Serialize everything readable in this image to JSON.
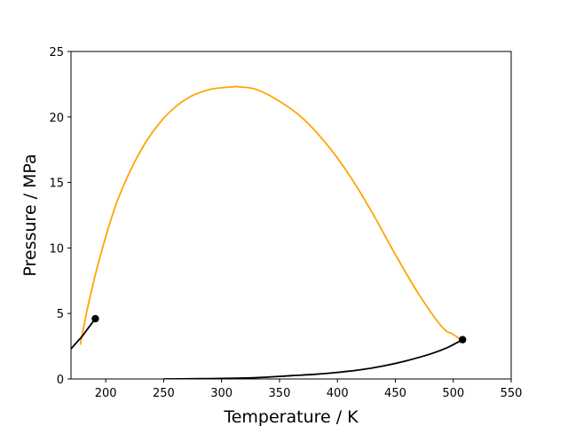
{
  "chart_data": {
    "type": "line",
    "xlabel": "Temperature / K",
    "ylabel": "Pressure / MPa",
    "xlim": [
      170,
      550
    ],
    "ylim": [
      0,
      25
    ],
    "xticks": [
      200,
      250,
      300,
      350,
      400,
      450,
      500,
      550
    ],
    "yticks": [
      0,
      5,
      10,
      15,
      20,
      25
    ],
    "grid": false,
    "series": [
      {
        "color": "#ffa500",
        "x": [
          178,
          185,
          195,
          210,
          230,
          250,
          270,
          290,
          310,
          315,
          330,
          350,
          370,
          390,
          410,
          430,
          450,
          470,
          490,
          500,
          507
        ],
        "y": [
          2.6,
          5.7,
          9.3,
          13.6,
          17.4,
          19.9,
          21.4,
          22.1,
          22.3,
          22.3,
          22.1,
          21.2,
          19.9,
          18.0,
          15.6,
          12.7,
          9.5,
          6.5,
          4.0,
          3.4,
          3.0
        ]
      },
      {
        "color": "#000000",
        "x": [
          170,
          175,
          180,
          185,
          191
        ],
        "y": [
          2.3,
          2.8,
          3.3,
          3.9,
          4.6
        ],
        "endpoint_marker": true
      },
      {
        "color": "#000000",
        "x": [
          250,
          280,
          300,
          330,
          360,
          380,
          400,
          420,
          440,
          460,
          480,
          495,
          508
        ],
        "y": [
          0.0,
          0.02,
          0.04,
          0.1,
          0.25,
          0.35,
          0.5,
          0.7,
          1.0,
          1.4,
          1.9,
          2.4,
          3.0
        ],
        "endpoint_marker": true
      }
    ]
  }
}
